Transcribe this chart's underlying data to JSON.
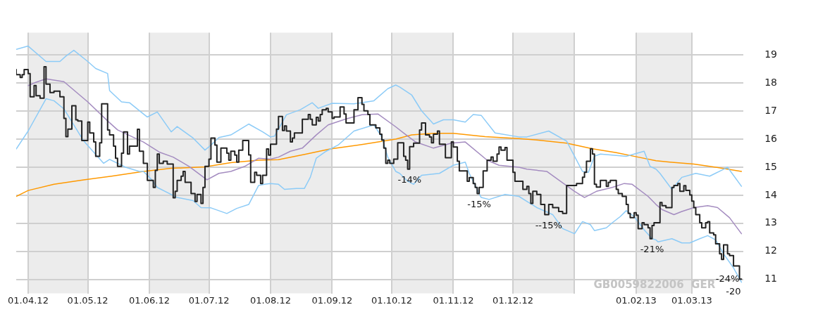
{
  "chart_data": {
    "type": "line",
    "xlim": [
      "2012-03-26",
      "2013-03-27"
    ],
    "ylim": [
      10.5,
      19.8
    ],
    "xticks": [
      {
        "value": "2012-04-01",
        "label": "01.04.12"
      },
      {
        "value": "2012-05-01",
        "label": "01.05.12"
      },
      {
        "value": "2012-06-01",
        "label": "01.06.12"
      },
      {
        "value": "2012-07-01",
        "label": "01.07.12"
      },
      {
        "value": "2012-08-01",
        "label": "01.08.12"
      },
      {
        "value": "2012-09-01",
        "label": "01.09.12"
      },
      {
        "value": "2012-10-01",
        "label": "01.10.12"
      },
      {
        "value": "2012-11-01",
        "label": "01.11.12"
      },
      {
        "value": "2012-12-01",
        "label": "01.12.12"
      },
      {
        "value": "2013-01-01",
        "label": null
      },
      {
        "value": "2013-02-01",
        "label": "01.02.13"
      },
      {
        "value": "2013-03-01",
        "label": "01.03.13"
      }
    ],
    "yticks": [
      11,
      12,
      13,
      14,
      15,
      16,
      17,
      18,
      19
    ],
    "grid": true,
    "legend": false,
    "bands": [
      {
        "axis": "x",
        "from": "2012-04-01",
        "to": "2012-05-01",
        "label": null,
        "color": "#ececec"
      },
      {
        "axis": "x",
        "from": "2012-06-01",
        "to": "2012-07-01",
        "label": null,
        "color": "#ececec"
      },
      {
        "axis": "x",
        "from": "2012-08-01",
        "to": "2012-09-01",
        "label": null,
        "color": "#ececec"
      },
      {
        "axis": "x",
        "from": "2012-10-01",
        "to": "2012-11-01",
        "label": null,
        "color": "#ececec"
      },
      {
        "axis": "x",
        "from": "2012-12-01",
        "to": "2013-01-01",
        "label": null,
        "color": "#ececec"
      },
      {
        "axis": "x",
        "from": "2013-02-01",
        "to": "2013-03-01",
        "label": null,
        "color": "#ececec"
      }
    ],
    "annotations": [
      {
        "text": "-14%",
        "x": "2012-10-10",
        "y": 14.93
      },
      {
        "text": "-15%",
        "x": "2012-11-14",
        "y": 14.06
      },
      {
        "text": "--15%",
        "x": "2012-12-19",
        "y": 13.31
      },
      {
        "text": "-21%",
        "x": "2013-02-09",
        "y": 12.45
      },
      {
        "text": "-24%",
        "x": "2013-03-26",
        "y": 11.01
      },
      {
        "text": "-20",
        "x": "2013-03-26",
        "y": 11.01
      },
      "GB0059822006  GER"
    ],
    "series": [
      {
        "type": "line",
        "color": "#ff9900",
        "x": [
          "2012-03-26",
          "2012-04-01",
          "2012-04-14",
          "2012-04-29",
          "2012-05-13",
          "2012-05-29",
          "2012-06-12",
          "2012-06-29",
          "2012-07-12",
          "2012-07-26",
          "2012-08-05",
          "2012-08-19",
          "2012-08-31",
          "2012-09-17",
          "2012-10-03",
          "2012-10-11",
          "2012-10-22",
          "2012-11-01",
          "2012-11-17",
          "2012-12-04",
          "2012-12-13",
          "2012-12-28",
          "2013-01-10",
          "2013-01-22",
          "2013-02-02",
          "2013-02-11",
          "2013-02-18",
          "2013-03-02",
          "2013-03-13",
          "2013-03-26"
        ],
        "values": [
          13.96,
          14.17,
          14.39,
          14.55,
          14.68,
          14.85,
          14.96,
          15.01,
          15.16,
          15.25,
          15.27,
          15.47,
          15.65,
          15.82,
          16.0,
          16.15,
          16.21,
          16.21,
          16.09,
          16.02,
          15.97,
          15.86,
          15.66,
          15.52,
          15.36,
          15.23,
          15.18,
          15.11,
          15.0,
          14.85
        ]
      },
      {
        "type": "line",
        "color": "#8ccbf7",
        "x": [
          "2012-03-26",
          "2012-04-01",
          "2012-04-10",
          "2012-04-17",
          "2012-04-20",
          "2012-04-24",
          "2012-05-01",
          "2012-05-05",
          "2012-05-11",
          "2012-05-12",
          "2012-05-18",
          "2012-05-22",
          "2012-05-29",
          "2012-05-31",
          "2012-06-05",
          "2012-06-12",
          "2012-06-15",
          "2012-06-23",
          "2012-06-29",
          "2012-07-02",
          "2012-07-06",
          "2012-07-12",
          "2012-07-21",
          "2012-07-28",
          "2012-08-01",
          "2012-08-03",
          "2012-08-09",
          "2012-08-16",
          "2012-08-22",
          "2012-08-25",
          "2012-09-01",
          "2012-09-12",
          "2012-09-22",
          "2012-09-29",
          "2012-10-03",
          "2012-10-05",
          "2012-10-11",
          "2012-10-16",
          "2012-10-22",
          "2012-10-27",
          "2012-11-01",
          "2012-11-07",
          "2012-11-11",
          "2012-11-15",
          "2012-11-22",
          "2012-12-04",
          "2012-12-08",
          "2012-12-19",
          "2012-12-28",
          "2013-01-05",
          "2013-01-08",
          "2013-01-11",
          "2013-01-14",
          "2013-01-27",
          "2013-02-05",
          "2013-02-08",
          "2013-02-11",
          "2013-02-13",
          "2013-02-19",
          "2013-02-24",
          "2013-03-03",
          "2013-03-10",
          "2013-03-16",
          "2013-03-19",
          "2013-03-26"
        ],
        "values": [
          19.2,
          19.32,
          18.77,
          18.77,
          18.96,
          19.17,
          18.77,
          18.52,
          18.34,
          17.73,
          17.33,
          17.3,
          16.9,
          16.79,
          16.97,
          16.26,
          16.45,
          16.04,
          15.61,
          15.79,
          16.06,
          16.15,
          16.54,
          16.26,
          16.08,
          16.11,
          16.87,
          17.05,
          17.3,
          17.1,
          17.28,
          17.26,
          17.37,
          17.8,
          17.93,
          17.86,
          17.58,
          17.01,
          16.54,
          16.69,
          16.69,
          16.61,
          16.88,
          16.85,
          16.22,
          16.08,
          16.08,
          16.29,
          15.93,
          14.85,
          14.82,
          15.39,
          15.47,
          15.39,
          15.57,
          15.03,
          14.93,
          14.78,
          14.21,
          14.64,
          14.78,
          14.68,
          14.89,
          15.0,
          14.32
        ]
      },
      {
        "type": "line",
        "color": "#8ccbf7",
        "x": [
          "2012-03-26",
          "2012-04-01",
          "2012-04-10",
          "2012-04-14",
          "2012-04-19",
          "2012-04-29",
          "2012-05-09",
          "2012-05-12",
          "2012-05-20",
          "2012-05-27",
          "2012-05-29",
          "2012-06-02",
          "2012-06-05",
          "2012-06-15",
          "2012-06-23",
          "2012-06-27",
          "2012-07-02",
          "2012-07-10",
          "2012-07-15",
          "2012-07-21",
          "2012-07-26",
          "2012-07-29",
          "2012-08-01",
          "2012-08-05",
          "2012-08-08",
          "2012-08-14",
          "2012-08-18",
          "2012-08-21",
          "2012-08-24",
          "2012-08-29",
          "2012-09-04",
          "2012-09-12",
          "2012-09-22",
          "2012-09-26",
          "2012-09-29",
          "2012-10-03",
          "2012-10-05",
          "2012-10-09",
          "2012-10-12",
          "2012-10-16",
          "2012-10-25",
          "2012-11-01",
          "2012-11-07",
          "2012-11-09",
          "2012-11-15",
          "2012-11-19",
          "2012-11-27",
          "2012-12-04",
          "2012-12-08",
          "2012-12-13",
          "2012-12-21",
          "2012-12-26",
          "2013-01-01",
          "2013-01-05",
          "2013-01-09",
          "2013-01-11",
          "2013-01-17",
          "2013-01-20",
          "2013-01-24",
          "2013-01-27",
          "2013-01-31",
          "2013-02-05",
          "2013-02-09",
          "2013-02-11",
          "2013-02-12",
          "2013-02-19",
          "2013-02-24",
          "2013-02-28",
          "2013-03-05",
          "2013-03-09",
          "2013-03-13",
          "2013-03-17",
          "2013-03-22",
          "2013-03-26"
        ],
        "values": [
          15.65,
          16.29,
          17.44,
          17.37,
          17.08,
          15.93,
          15.14,
          15.28,
          15.0,
          14.85,
          14.85,
          14.57,
          14.28,
          13.92,
          13.81,
          13.56,
          13.55,
          13.35,
          13.53,
          13.67,
          14.35,
          14.39,
          14.42,
          14.39,
          14.21,
          14.24,
          14.24,
          14.64,
          15.32,
          15.57,
          15.79,
          16.29,
          16.51,
          16.08,
          15.36,
          14.85,
          14.78,
          14.5,
          14.39,
          14.71,
          14.78,
          15.07,
          15.18,
          14.78,
          13.92,
          13.85,
          14.03,
          13.96,
          13.78,
          13.56,
          13.31,
          12.81,
          12.63,
          13.06,
          12.95,
          12.74,
          12.84,
          13.02,
          13.24,
          13.45,
          13.24,
          12.77,
          12.45,
          12.41,
          12.34,
          12.45,
          12.3,
          12.3,
          12.45,
          12.56,
          12.41,
          11.91,
          11.41,
          10.9
        ]
      },
      {
        "type": "line",
        "color": "#a48cc0",
        "x": [
          "2012-04-01",
          "2012-04-05",
          "2012-04-10",
          "2012-04-19",
          "2012-05-01",
          "2012-05-11",
          "2012-05-16",
          "2012-05-29",
          "2012-06-06",
          "2012-06-13",
          "2012-06-21",
          "2012-06-30",
          "2012-07-06",
          "2012-07-12",
          "2012-07-19",
          "2012-07-26",
          "2012-08-01",
          "2012-08-05",
          "2012-08-11",
          "2012-08-17",
          "2012-08-24",
          "2012-08-30",
          "2012-09-08",
          "2012-09-16",
          "2012-09-24",
          "2012-10-03",
          "2012-10-07",
          "2012-10-13",
          "2012-10-22",
          "2012-10-31",
          "2012-11-07",
          "2012-11-18",
          "2012-11-24",
          "2012-12-04",
          "2012-12-08",
          "2012-12-18",
          "2013-01-01",
          "2013-01-06",
          "2013-01-12",
          "2013-01-20",
          "2013-01-26",
          "2013-01-30",
          "2013-02-07",
          "2013-02-11",
          "2013-02-14",
          "2013-02-20",
          "2013-02-24",
          "2013-03-02",
          "2013-03-09",
          "2013-03-14",
          "2013-03-20",
          "2013-03-26"
        ],
        "values": [
          17.91,
          18.03,
          18.15,
          18.05,
          17.33,
          16.65,
          16.33,
          15.9,
          15.54,
          15.36,
          15.03,
          14.55,
          14.78,
          14.85,
          15.03,
          15.32,
          15.29,
          15.36,
          15.57,
          15.68,
          16.15,
          16.51,
          16.72,
          16.87,
          16.9,
          16.44,
          16.22,
          15.9,
          15.68,
          15.86,
          15.9,
          15.25,
          15.07,
          15.0,
          14.93,
          14.85,
          14.14,
          13.92,
          14.14,
          14.28,
          14.42,
          14.39,
          13.96,
          13.67,
          13.49,
          13.31,
          13.42,
          13.56,
          13.63,
          13.56,
          13.2,
          12.63
        ]
      },
      {
        "type": "step",
        "color": "#222222",
        "x": [
          "2012-03-26",
          "2012-03-28",
          "2012-03-29",
          "2012-03-30",
          "2012-04-01",
          "2012-04-02",
          "2012-04-04",
          "2012-04-05",
          "2012-04-07",
          "2012-04-09",
          "2012-04-10",
          "2012-04-12",
          "2012-04-14",
          "2012-04-17",
          "2012-04-19",
          "2012-04-20",
          "2012-04-21",
          "2012-04-23",
          "2012-04-25",
          "2012-04-26",
          "2012-04-28",
          "2012-05-01",
          "2012-05-02",
          "2012-05-04",
          "2012-05-05",
          "2012-05-07",
          "2012-05-08",
          "2012-05-11",
          "2012-05-12",
          "2012-05-14",
          "2012-05-15",
          "2012-05-16",
          "2012-05-18",
          "2012-05-19",
          "2012-05-21",
          "2012-05-22",
          "2012-05-26",
          "2012-05-27",
          "2012-05-29",
          "2012-05-31",
          "2012-06-03",
          "2012-06-04",
          "2012-06-05",
          "2012-06-06",
          "2012-06-08",
          "2012-06-10",
          "2012-06-13",
          "2012-06-14",
          "2012-06-15",
          "2012-06-17",
          "2012-06-18",
          "2012-06-19",
          "2012-06-22",
          "2012-06-24",
          "2012-06-25",
          "2012-06-27",
          "2012-06-28",
          "2012-06-29",
          "2012-07-01",
          "2012-07-02",
          "2012-07-04",
          "2012-07-05",
          "2012-07-07",
          "2012-07-10",
          "2012-07-11",
          "2012-07-12",
          "2012-07-14",
          "2012-07-15",
          "2012-07-16",
          "2012-07-18",
          "2012-07-21",
          "2012-07-22",
          "2012-07-24",
          "2012-07-25",
          "2012-07-27",
          "2012-07-28",
          "2012-07-30",
          "2012-07-31",
          "2012-08-01",
          "2012-08-04",
          "2012-08-05",
          "2012-08-07",
          "2012-08-08",
          "2012-08-09",
          "2012-08-11",
          "2012-08-12",
          "2012-08-13",
          "2012-08-17",
          "2012-08-20",
          "2012-08-21",
          "2012-08-22",
          "2012-08-24",
          "2012-08-25",
          "2012-08-26",
          "2012-08-27",
          "2012-08-29",
          "2012-08-30",
          "2012-09-01",
          "2012-09-02",
          "2012-09-05",
          "2012-09-07",
          "2012-09-08",
          "2012-09-12",
          "2012-09-14",
          "2012-09-16",
          "2012-09-17",
          "2012-09-19",
          "2012-09-20",
          "2012-09-23",
          "2012-09-25",
          "2012-09-26",
          "2012-09-27",
          "2012-09-28",
          "2012-09-29",
          "2012-09-30",
          "2012-10-02",
          "2012-10-04",
          "2012-10-07",
          "2012-10-08",
          "2012-10-09",
          "2012-10-10",
          "2012-10-12",
          "2012-10-15",
          "2012-10-16",
          "2012-10-18",
          "2012-10-20",
          "2012-10-21",
          "2012-10-22",
          "2012-10-24",
          "2012-10-25",
          "2012-10-28",
          "2012-10-31",
          "2012-11-01",
          "2012-11-03",
          "2012-11-04",
          "2012-11-08",
          "2012-11-09",
          "2012-11-11",
          "2012-11-12",
          "2012-11-13",
          "2012-11-14",
          "2012-11-16",
          "2012-11-18",
          "2012-11-20",
          "2012-11-21",
          "2012-11-23",
          "2012-11-24",
          "2012-11-25",
          "2012-11-27",
          "2012-11-28",
          "2012-12-01",
          "2012-12-02",
          "2012-12-06",
          "2012-12-08",
          "2012-12-09",
          "2012-12-10",
          "2012-12-11",
          "2012-12-13",
          "2012-12-15",
          "2012-12-17",
          "2012-12-19",
          "2012-12-21",
          "2012-12-24",
          "2012-12-26",
          "2012-12-28",
          "2013-01-02",
          "2013-01-05",
          "2013-01-06",
          "2013-01-07",
          "2013-01-09",
          "2013-01-10",
          "2013-01-11",
          "2013-01-12",
          "2013-01-14",
          "2013-01-17",
          "2013-01-18",
          "2013-01-19",
          "2013-01-22",
          "2013-01-23",
          "2013-01-25",
          "2013-01-27",
          "2013-01-28",
          "2013-01-29",
          "2013-01-31",
          "2013-02-01",
          "2013-02-02",
          "2013-02-04",
          "2013-02-05",
          "2013-02-07",
          "2013-02-08",
          "2013-02-09",
          "2013-02-10",
          "2013-02-13",
          "2013-02-14",
          "2013-02-16",
          "2013-02-19",
          "2013-02-20",
          "2013-02-22",
          "2013-02-23",
          "2013-02-25",
          "2013-02-26",
          "2013-02-28",
          "2013-03-01",
          "2013-03-02",
          "2013-03-03",
          "2013-03-05",
          "2013-03-06",
          "2013-03-08",
          "2013-03-09",
          "2013-03-10",
          "2013-03-12",
          "2013-03-13",
          "2013-03-15",
          "2013-03-16",
          "2013-03-17",
          "2013-03-19",
          "2013-03-20",
          "2013-03-22",
          "2013-03-25",
          "2013-03-26"
        ],
        "values": [
          18.48,
          18.3,
          18.2,
          18.3,
          18.48,
          18.34,
          17.51,
          17.91,
          17.55,
          17.46,
          18.58,
          17.96,
          17.66,
          17.71,
          17.51,
          16.74,
          16.09,
          16.36,
          17.19,
          16.69,
          16.65,
          15.95,
          16.61,
          16.22,
          15.9,
          15.39,
          15.87,
          17.26,
          16.33,
          16.15,
          15.75,
          15.32,
          15.03,
          15.5,
          16.26,
          15.47,
          15.75,
          16.35,
          15.57,
          15.14,
          14.53,
          14.28,
          14.89,
          15.47,
          15.14,
          15.21,
          15.11,
          13.91,
          14.14,
          14.53,
          14.68,
          14.85,
          14.46,
          14.06,
          13.78,
          14.03,
          13.71,
          14.28,
          15.03,
          15.29,
          16.04,
          15.79,
          15.18,
          15.68,
          15.5,
          15.25,
          15.57,
          15.43,
          15.18,
          15.61,
          15.95,
          15.44,
          14.46,
          14.82,
          14.71,
          14.42,
          14.71,
          15.65,
          15.43,
          15.82,
          16.36,
          16.81,
          16.31,
          16.47,
          16.29,
          15.9,
          16.04,
          16.22,
          16.71,
          16.88,
          16.71,
          16.51,
          16.78,
          16.65,
          16.88,
          17.05,
          17.1,
          16.97,
          16.74,
          16.79,
          17.15,
          16.9,
          16.58,
          17.05,
          17.48,
          17.24,
          17.01,
          16.88,
          16.51,
          16.4,
          16.18,
          15.97,
          15.68,
          15.14,
          15.25,
          15.14,
          15.29,
          15.87,
          15.39,
          15.25,
          14.93,
          15.73,
          15.86,
          16.33,
          16.58,
          16.15,
          16.08,
          15.87,
          16.18,
          16.29,
          15.82,
          15.34,
          15.9,
          15.72,
          15.21,
          14.87,
          14.5,
          14.63,
          14.42,
          14.28,
          14.06,
          14.28,
          14.87,
          15.25,
          15.36,
          15.21,
          15.47,
          15.72,
          15.61,
          15.7,
          15.25,
          14.82,
          14.5,
          14.21,
          14.32,
          14.06,
          13.71,
          14.14,
          14.03,
          13.67,
          13.31,
          13.67,
          13.56,
          13.42,
          13.35,
          14.35,
          14.42,
          14.64,
          14.82,
          15.21,
          15.66,
          15.47,
          14.39,
          14.29,
          14.53,
          14.32,
          14.46,
          14.53,
          14.21,
          14.06,
          13.96,
          13.67,
          13.35,
          13.2,
          13.38,
          13.29,
          12.81,
          13.02,
          12.95,
          12.84,
          12.45,
          12.92,
          13.02,
          13.74,
          13.63,
          13.56,
          14.28,
          14.35,
          14.42,
          14.14,
          14.34,
          14.17,
          14.01,
          13.79,
          13.56,
          13.31,
          13.02,
          12.84,
          13.02,
          13.06,
          12.66,
          12.59,
          12.27,
          11.91,
          11.71,
          12.23,
          11.91,
          11.85,
          11.48,
          11.01
        ]
      }
    ]
  }
}
